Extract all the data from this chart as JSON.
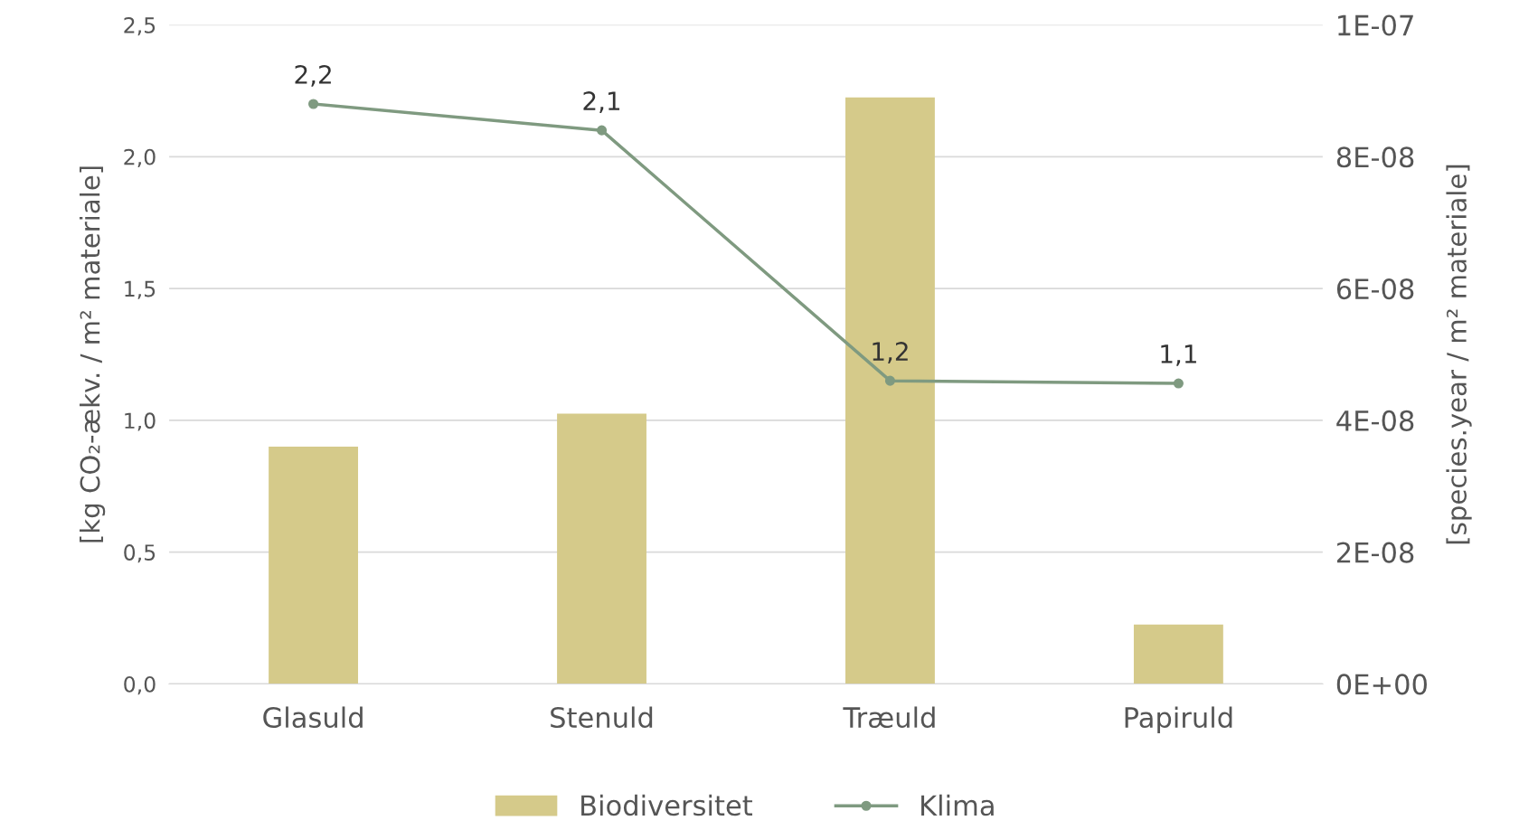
{
  "chart_data": {
    "type": "bar",
    "categories": [
      "Glasuld",
      "Stenuld",
      "Træuld",
      "Papiruld"
    ],
    "series": [
      {
        "name": "Biodiversitet",
        "axis": "y2",
        "color": "#d5ca8a",
        "values": [
          3.6e-08,
          4.1e-08,
          8.9e-08,
          9e-09
        ]
      },
      {
        "name": "Klima",
        "type": "line",
        "color": "#7f9a80",
        "marker": "circle",
        "values": [
          2.2,
          2.1,
          1.15,
          1.14
        ],
        "value_labels": [
          "2,2",
          "2,1",
          "1,2",
          "1,1"
        ]
      }
    ],
    "ylabel": "[kg CO₂-ækv. / m² materiale]",
    "y2label": "[species.year / m² materiale]",
    "ylim": [
      0,
      2.5
    ],
    "yticks": [
      {
        "value": 0,
        "label": "0,0"
      },
      {
        "value": 0.5,
        "label": "0,5"
      },
      {
        "value": 1,
        "label": "1,0"
      },
      {
        "value": 1.5,
        "label": "1,5"
      },
      {
        "value": 2,
        "label": "2,0"
      },
      {
        "value": 2.5,
        "label": "2,5"
      }
    ],
    "y2lim": [
      0,
      1e-07
    ],
    "y2ticks": [
      {
        "value": 0,
        "label": "0E+00"
      },
      {
        "value": 2e-08,
        "label": "2E-08"
      },
      {
        "value": 4e-08,
        "label": "4E-08"
      },
      {
        "value": 6e-08,
        "label": "6E-08"
      },
      {
        "value": 8e-08,
        "label": "8E-08"
      },
      {
        "value": 1e-07,
        "label": "1E-07"
      }
    ],
    "grid": "y",
    "legend": "bottom"
  }
}
